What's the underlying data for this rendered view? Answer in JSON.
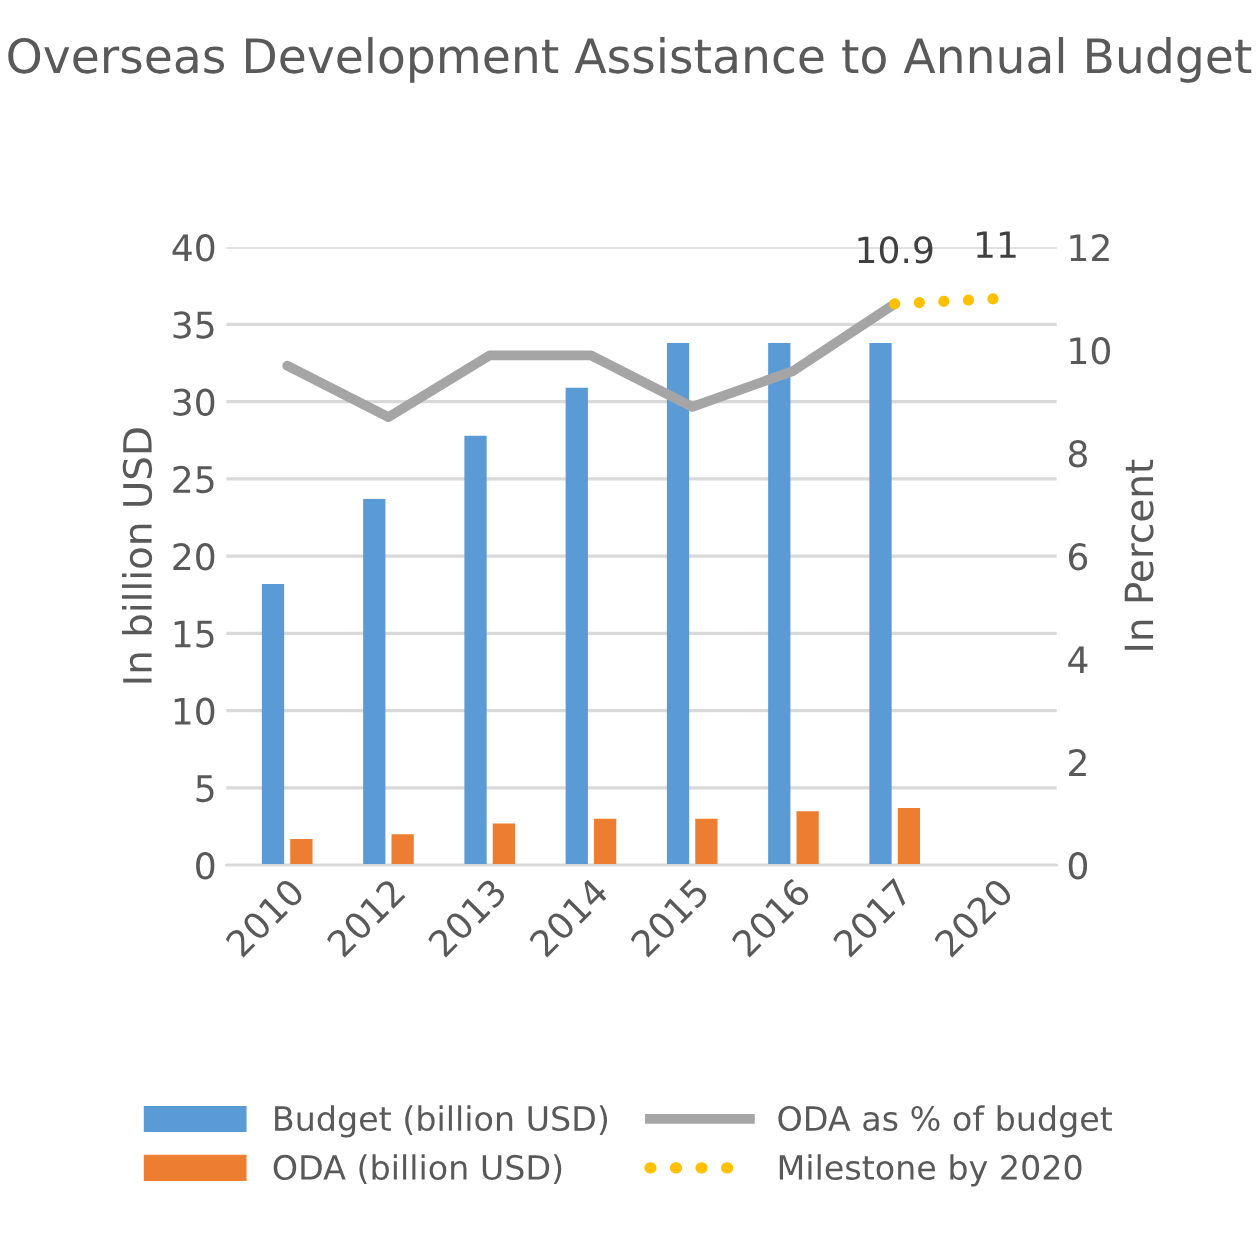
{
  "chart_data": {
    "type": "bar",
    "title": "Overseas Development Assistance to Annual Budget",
    "ylabel": "In billion USD",
    "y2label": "In Percent",
    "categories": [
      "2010",
      "2012",
      "2013",
      "2014",
      "2015",
      "2016",
      "2017",
      "2020"
    ],
    "series": [
      {
        "name": "Budget (billion USD)",
        "color": "#5b9bd5",
        "values": [
          18.2,
          23.7,
          27.8,
          30.9,
          33.8,
          33.8,
          33.8,
          null
        ]
      },
      {
        "name": "ODA (billion USD)",
        "color": "#ed7d31",
        "values": [
          1.7,
          2.0,
          2.7,
          3.0,
          3.0,
          3.5,
          3.7,
          null
        ]
      },
      {
        "name": "ODA as % of budget",
        "type": "line",
        "axis": "y2",
        "line_style": "solid",
        "color": "#a5a5a5",
        "values": [
          9.7,
          8.7,
          9.9,
          9.9,
          8.9,
          9.6,
          10.9,
          null
        ]
      },
      {
        "name": "Milestone by 2020",
        "type": "line",
        "axis": "y2",
        "line_style": "dotted",
        "color": "#ffc000",
        "values": [
          null,
          null,
          null,
          null,
          null,
          null,
          10.9,
          11
        ],
        "value_labels": [
          null,
          null,
          null,
          null,
          null,
          null,
          "10.9",
          "11"
        ]
      }
    ],
    "ylim": [
      0,
      40
    ],
    "yticks": [
      0,
      5,
      10,
      15,
      20,
      25,
      30,
      35,
      40
    ],
    "y2lim": [
      0,
      12
    ],
    "y2ticks": [
      0,
      2,
      4,
      6,
      8,
      10,
      12
    ],
    "grid": "y",
    "legend": "bottom"
  }
}
